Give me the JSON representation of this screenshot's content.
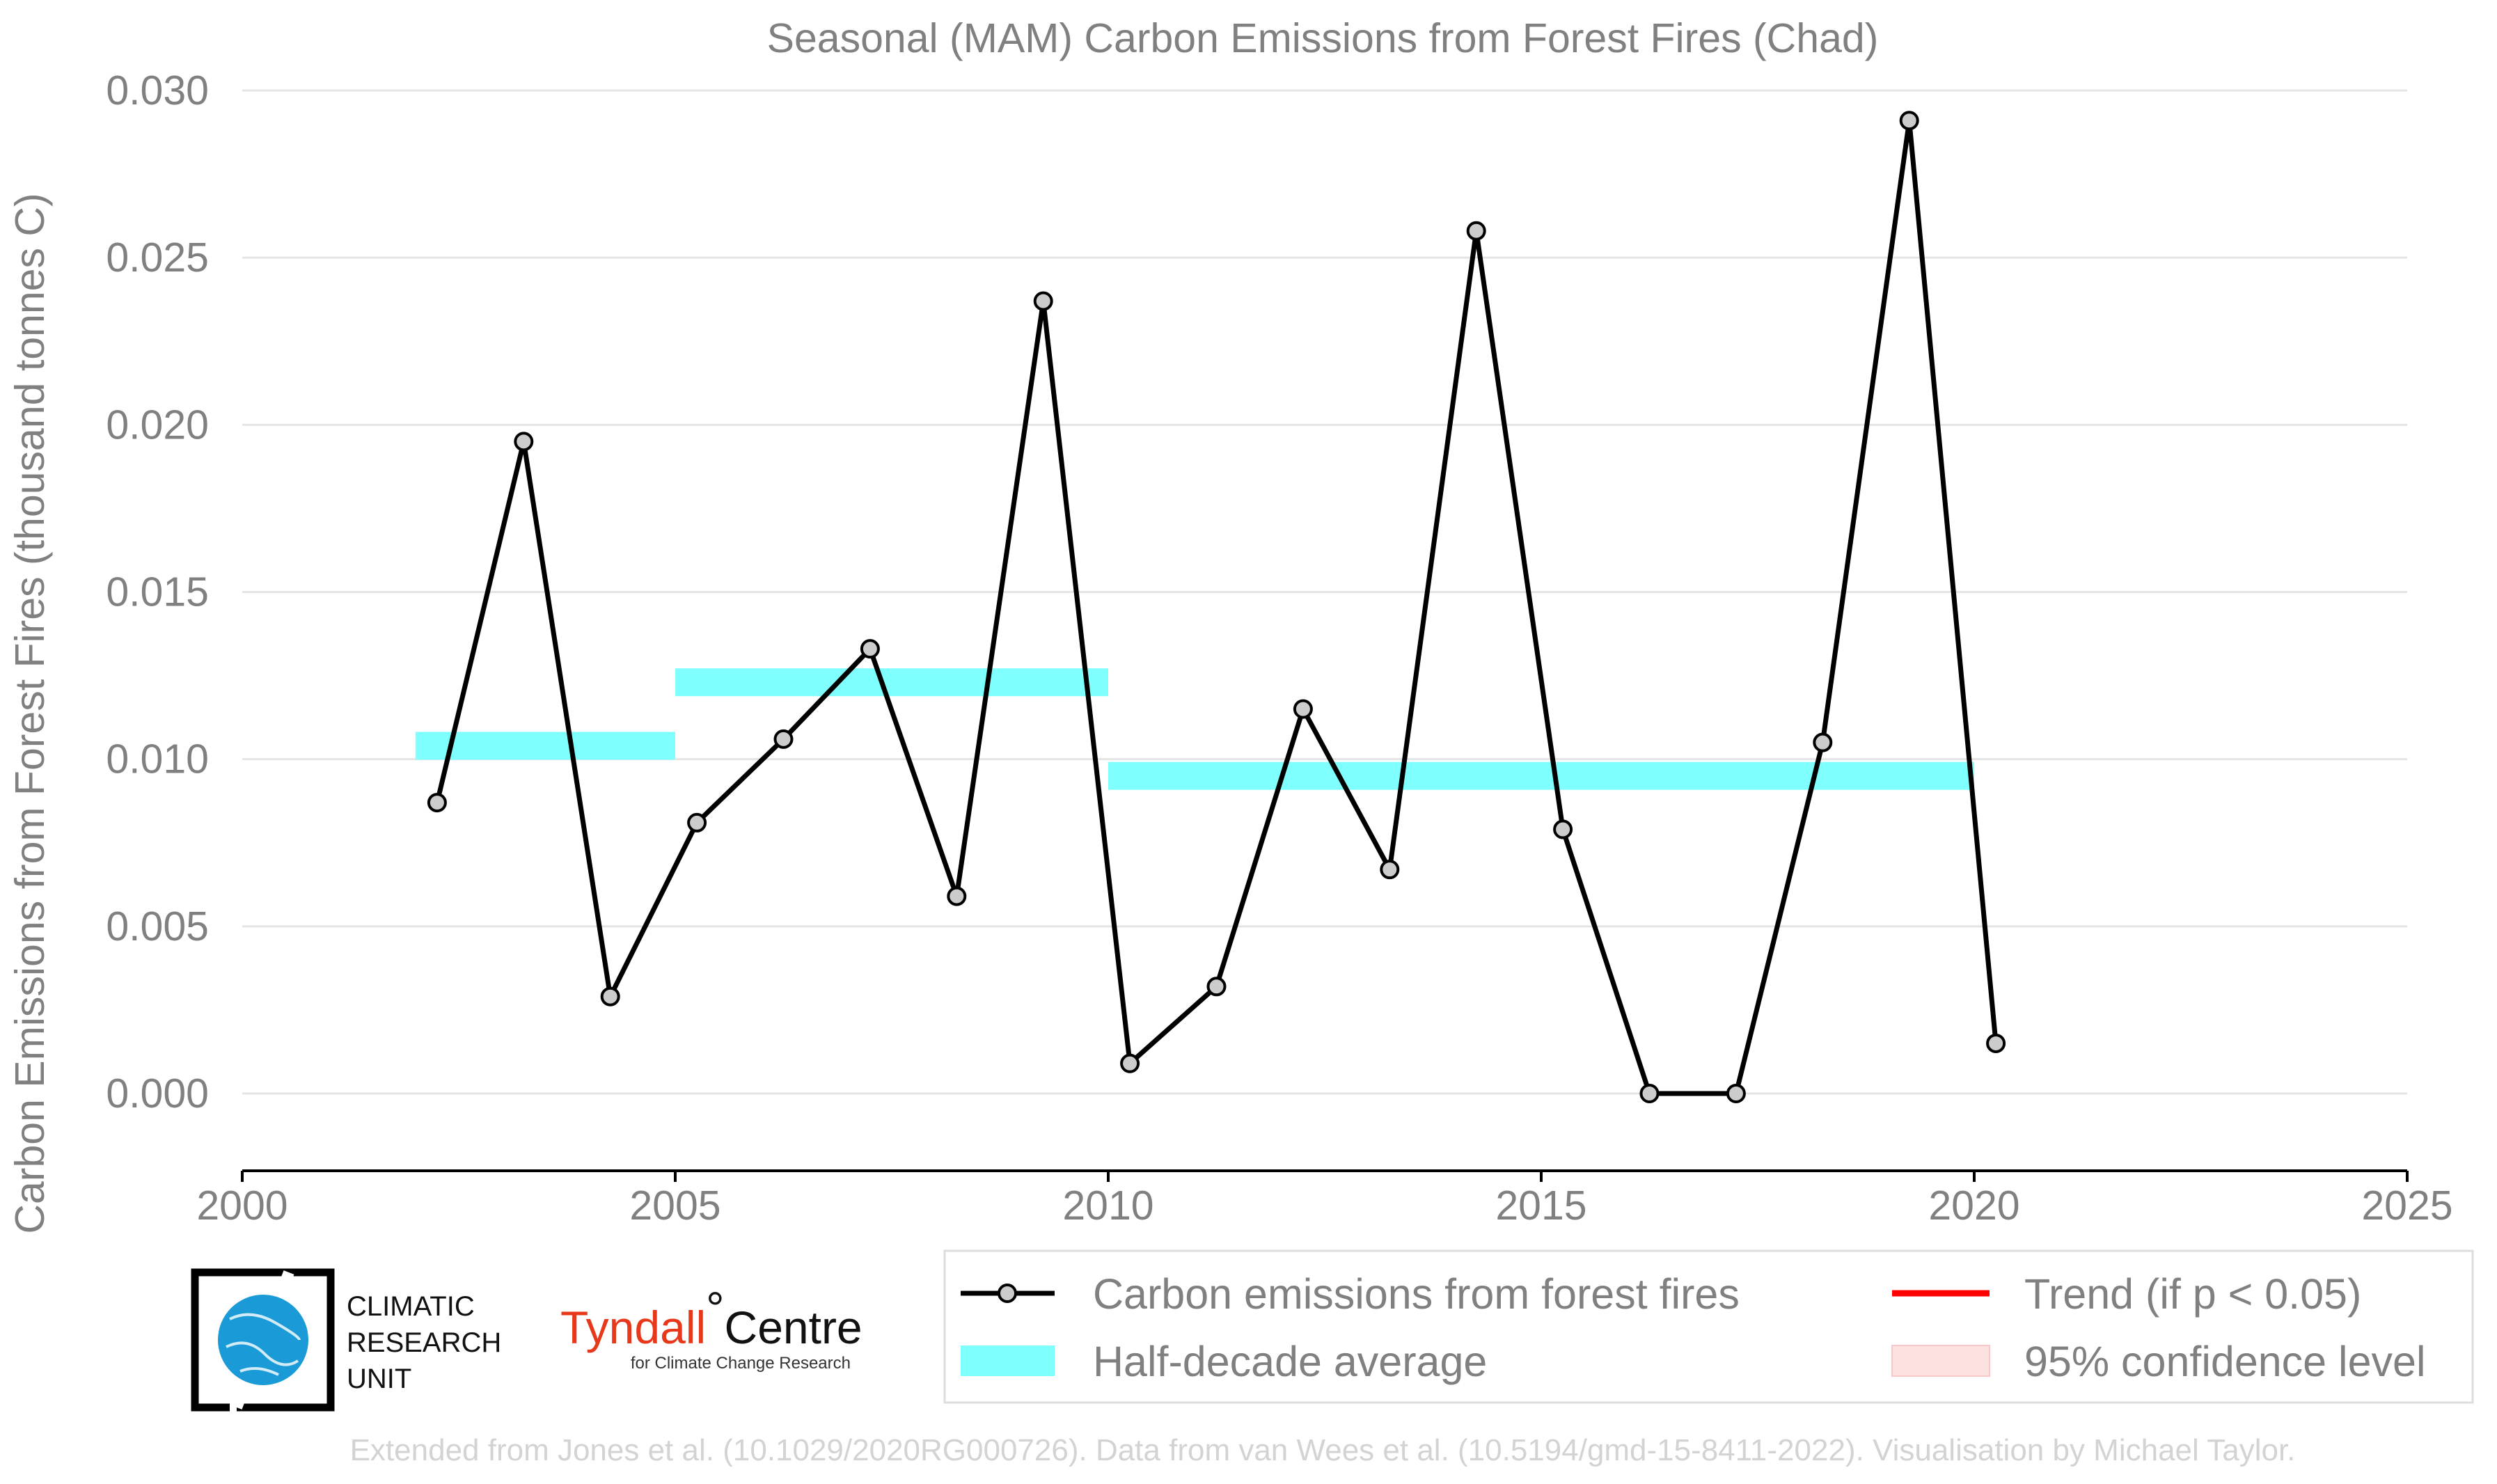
{
  "chart_data": {
    "type": "line",
    "title": "Seasonal (MAM) Carbon Emissions from Forest Fires (Chad)",
    "ylabel": "Carbon Emissions from Forest Fires (thousand tonnes C)",
    "xlabel": "",
    "xlim": [
      2000,
      2025
    ],
    "ylim": [
      0.0,
      0.03
    ],
    "x_ticks": [
      "2000",
      "2005",
      "2010",
      "2015",
      "2020",
      "2025"
    ],
    "y_ticks": [
      "0.000",
      "0.005",
      "0.010",
      "0.015",
      "0.020",
      "0.025",
      "0.030"
    ],
    "grid": "horizontal",
    "series": [
      {
        "name": "Carbon emissions from forest fires",
        "x": [
          2002.25,
          2003.25,
          2004.25,
          2005.25,
          2006.25,
          2007.25,
          2008.25,
          2009.25,
          2010.25,
          2011.25,
          2012.25,
          2013.25,
          2014.25,
          2015.25,
          2016.25,
          2017.25,
          2018.25,
          2019.25,
          2020.25
        ],
        "values": [
          0.0087,
          0.0195,
          0.0029,
          0.0081,
          0.0106,
          0.0133,
          0.0059,
          0.0237,
          0.0009,
          0.0032,
          0.0115,
          0.0067,
          0.0258,
          0.0079,
          0.0,
          0.0,
          0.0105,
          0.0291,
          0.0015
        ],
        "color": "#000000"
      }
    ],
    "half_decade_average": {
      "name": "Half-decade average",
      "color": "#80ffff",
      "segments": [
        {
          "x0": 2002,
          "x1": 2005,
          "value": 0.0104
        },
        {
          "x0": 2005,
          "x1": 2010,
          "value": 0.0123
        },
        {
          "x0": 2010,
          "x1": 2015,
          "value": 0.0095
        },
        {
          "x0": 2015,
          "x1": 2020,
          "value": 0.0095
        }
      ]
    },
    "legend": {
      "placement": "bottom",
      "entries": [
        {
          "label": "Carbon emissions from forest fires",
          "kind": "line-marker",
          "color": "#000000"
        },
        {
          "label": "Trend (if p < 0.05)",
          "kind": "line",
          "color": "#ff0000"
        },
        {
          "label": "Half-decade average",
          "kind": "band",
          "color": "#80ffff"
        },
        {
          "label": "95% confidence level",
          "kind": "band",
          "color": "#fde0e0"
        }
      ]
    }
  },
  "logos": {
    "cru_lines": [
      "CLIMATIC",
      "RESEARCH",
      "UNIT"
    ],
    "tyndall_main": "Tyndall",
    "tyndall_centre": "Centre",
    "tyndall_sub": "for Climate Change Research"
  },
  "credit": "Extended from Jones et al. (10.1029/2020RG000726). Data from van Wees et al. (10.5194/gmd-15-8411-2022). Visualisation by Michael Taylor."
}
